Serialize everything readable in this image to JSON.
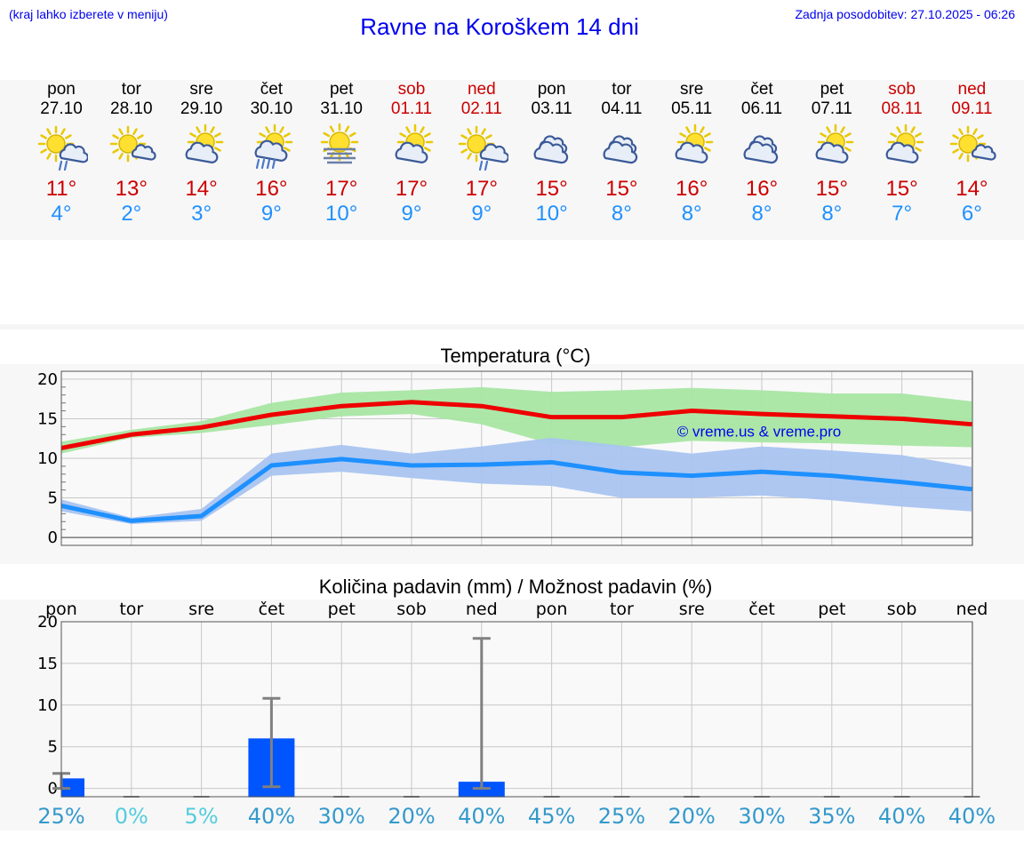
{
  "header": {
    "hint": "(kraj lahko izberete v meniju)",
    "title": "Ravne na Koroškem 14 dni",
    "updated": "Zadnja posodobitev: 27.10.2025 - 06:26"
  },
  "days": [
    {
      "wd": "pon",
      "date": "27.10",
      "icon": "sun-cloud-rain-icon",
      "tmax": "11°",
      "tmin": "4°",
      "weekend": false
    },
    {
      "wd": "tor",
      "date": "28.10",
      "icon": "sun-small-cloud-icon",
      "tmax": "13°",
      "tmin": "2°",
      "weekend": false
    },
    {
      "wd": "sre",
      "date": "29.10",
      "icon": "sun-cloud-icon",
      "tmax": "14°",
      "tmin": "3°",
      "weekend": false
    },
    {
      "wd": "čet",
      "date": "30.10",
      "icon": "sun-cloud-heavy-rain-icon",
      "tmax": "16°",
      "tmin": "9°",
      "weekend": false
    },
    {
      "wd": "pet",
      "date": "31.10",
      "icon": "sun-fog-icon",
      "tmax": "17°",
      "tmin": "10°",
      "weekend": false
    },
    {
      "wd": "sob",
      "date": "01.11",
      "icon": "sun-cloud-icon",
      "tmax": "17°",
      "tmin": "9°",
      "weekend": true
    },
    {
      "wd": "ned",
      "date": "02.11",
      "icon": "sun-cloud-rain-icon",
      "tmax": "17°",
      "tmin": "9°",
      "weekend": true
    },
    {
      "wd": "pon",
      "date": "03.11",
      "icon": "cloudy-icon",
      "tmax": "15°",
      "tmin": "10°",
      "weekend": false
    },
    {
      "wd": "tor",
      "date": "04.11",
      "icon": "cloudy-icon",
      "tmax": "15°",
      "tmin": "8°",
      "weekend": false
    },
    {
      "wd": "sre",
      "date": "05.11",
      "icon": "sun-cloud-icon",
      "tmax": "16°",
      "tmin": "8°",
      "weekend": false
    },
    {
      "wd": "čet",
      "date": "06.11",
      "icon": "cloudy-icon",
      "tmax": "16°",
      "tmin": "8°",
      "weekend": false
    },
    {
      "wd": "pet",
      "date": "07.11",
      "icon": "sun-cloud-icon",
      "tmax": "15°",
      "tmin": "8°",
      "weekend": false
    },
    {
      "wd": "sob",
      "date": "08.11",
      "icon": "sun-cloud-icon",
      "tmax": "15°",
      "tmin": "7°",
      "weekend": true
    },
    {
      "wd": "ned",
      "date": "09.11",
      "icon": "sun-small-cloud-icon",
      "tmax": "14°",
      "tmin": "6°",
      "weekend": true
    }
  ],
  "colors": {
    "max_line": "#ee0000",
    "max_band": "#a8e6a3",
    "min_line": "#1e90ff",
    "min_band": "#a9c4f0",
    "bar": "#0055ff",
    "whisker": "#808080",
    "weekend": "#cc0000",
    "pct_high": "#3399cc",
    "pct_low": "#55ccdd"
  },
  "chart_data": [
    {
      "type": "line",
      "title": "Temperatura (°C)",
      "watermark": "© vreme.us & vreme.pro",
      "x": [
        "27.10",
        "28.10",
        "29.10",
        "30.10",
        "31.10",
        "01.11",
        "02.11",
        "03.11",
        "04.11",
        "05.11",
        "06.11",
        "07.11",
        "08.11",
        "09.11"
      ],
      "ylim": [
        -1,
        21
      ],
      "yticks": [
        0,
        5,
        10,
        15,
        20
      ],
      "series": [
        {
          "values": [
            11.3,
            13.0,
            13.9,
            15.5,
            16.6,
            17.1,
            16.6,
            15.2,
            15.2,
            16.0,
            15.6,
            15.3,
            15.0,
            14.3
          ],
          "band_low": [
            10.6,
            12.6,
            13.2,
            14.2,
            15.3,
            15.6,
            14.3,
            11.8,
            11.4,
            12.2,
            12.0,
            11.9,
            11.6,
            11.4
          ],
          "band_high": [
            12.1,
            13.6,
            14.7,
            17.0,
            18.3,
            18.6,
            19.0,
            18.4,
            18.6,
            18.9,
            18.6,
            18.2,
            18.2,
            17.2
          ]
        },
        {
          "values": [
            4.0,
            2.1,
            2.7,
            9.1,
            9.9,
            9.1,
            9.2,
            9.5,
            8.2,
            7.8,
            8.3,
            7.8,
            7.0,
            6.1
          ],
          "band_low": [
            3.3,
            1.7,
            2.1,
            7.8,
            8.3,
            7.5,
            6.8,
            6.5,
            5.0,
            5.0,
            5.3,
            4.7,
            3.9,
            3.3
          ],
          "band_high": [
            4.8,
            2.5,
            3.6,
            10.6,
            11.7,
            10.6,
            11.5,
            12.6,
            11.6,
            10.6,
            11.5,
            11.0,
            10.4,
            8.9
          ]
        }
      ]
    },
    {
      "type": "bar",
      "title": "Količina padavin (mm) / Možnost padavin (%)",
      "categories": [
        "pon",
        "tor",
        "sre",
        "čet",
        "pet",
        "sob",
        "ned",
        "pon",
        "tor",
        "sre",
        "čet",
        "pet",
        "sob",
        "ned"
      ],
      "ylim": [
        -1,
        20
      ],
      "yticks": [
        0,
        5,
        10,
        15,
        20
      ],
      "values": [
        1.2,
        0,
        0,
        6.0,
        0,
        0,
        0.8,
        0,
        0,
        0,
        0,
        0,
        0,
        0
      ],
      "error_low": [
        0,
        0,
        0,
        0.2,
        0,
        0,
        0,
        0,
        0,
        0,
        0,
        0,
        0,
        0
      ],
      "error_high": [
        1.8,
        0,
        0,
        10.8,
        0,
        0,
        18.0,
        0,
        0,
        0,
        0,
        0,
        0,
        0
      ],
      "probability": [
        "25%",
        "0%",
        "5%",
        "40%",
        "30%",
        "20%",
        "40%",
        "45%",
        "25%",
        "20%",
        "30%",
        "35%",
        "40%",
        "40%"
      ]
    }
  ]
}
